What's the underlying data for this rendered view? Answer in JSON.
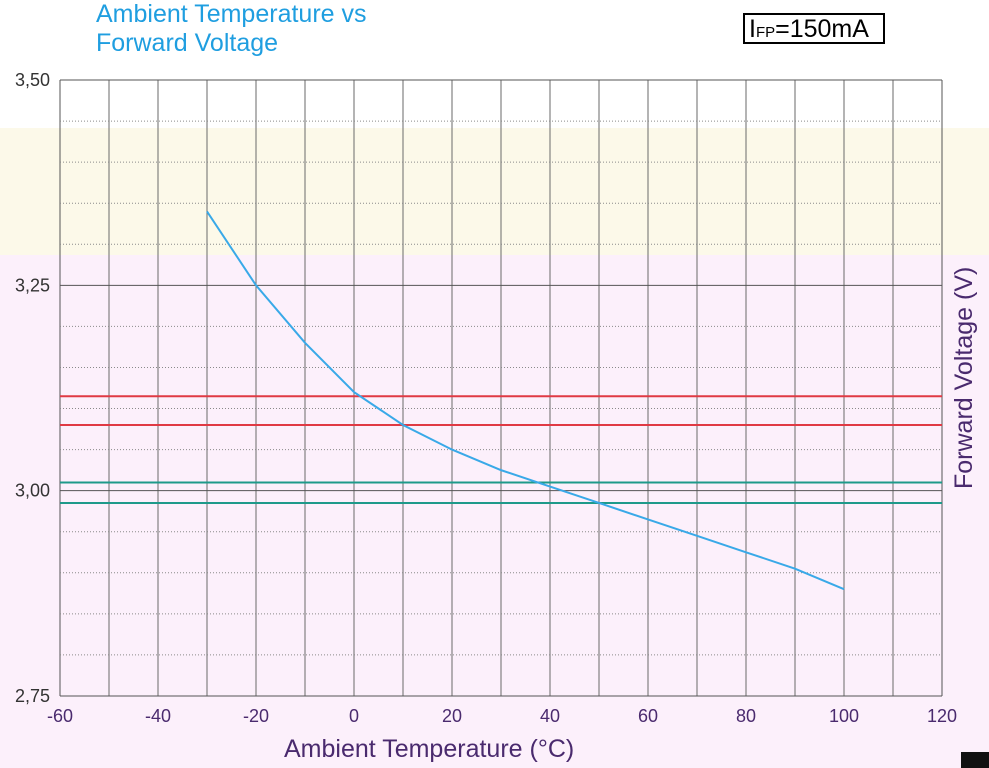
{
  "title": {
    "line1": "Ambient Temperature vs",
    "line2": "Forward Voltage"
  },
  "condition": {
    "main": "I",
    "sub": "FP",
    "rest": "=150mA"
  },
  "colors": {
    "curve": "#39a9e8",
    "red_band": "#e03a44",
    "green_band": "#1e9a8a",
    "title": "#1f9ee0",
    "axis_text": "#4a2a6e"
  },
  "chart_data": {
    "type": "line",
    "title": "Ambient Temperature vs Forward Voltage",
    "xlabel": "Ambient Temperature (°C)",
    "ylabel": "Forward Voltage (V)",
    "xlim": [
      -60,
      120
    ],
    "ylim": [
      2.75,
      3.5
    ],
    "x_ticks": [
      "-60",
      "-40",
      "-20",
      "0",
      "20",
      "40",
      "60",
      "80",
      "100",
      "120"
    ],
    "y_ticks": [
      "3,50",
      "3,25",
      "3,00",
      "2,75"
    ],
    "grid": true,
    "series": [
      {
        "x": [
          -30,
          -20,
          -10,
          0,
          10,
          20,
          30,
          40,
          50,
          60,
          70,
          80,
          90,
          100
        ],
        "values": [
          3.34,
          3.25,
          3.18,
          3.12,
          3.08,
          3.05,
          3.025,
          3.005,
          2.985,
          2.965,
          2.945,
          2.925,
          2.905,
          2.88
        ]
      }
    ],
    "reference_lines": [
      {
        "color": "red",
        "values": [
          3.115,
          3.08
        ]
      },
      {
        "color": "green",
        "values": [
          3.01,
          2.985
        ]
      }
    ]
  }
}
